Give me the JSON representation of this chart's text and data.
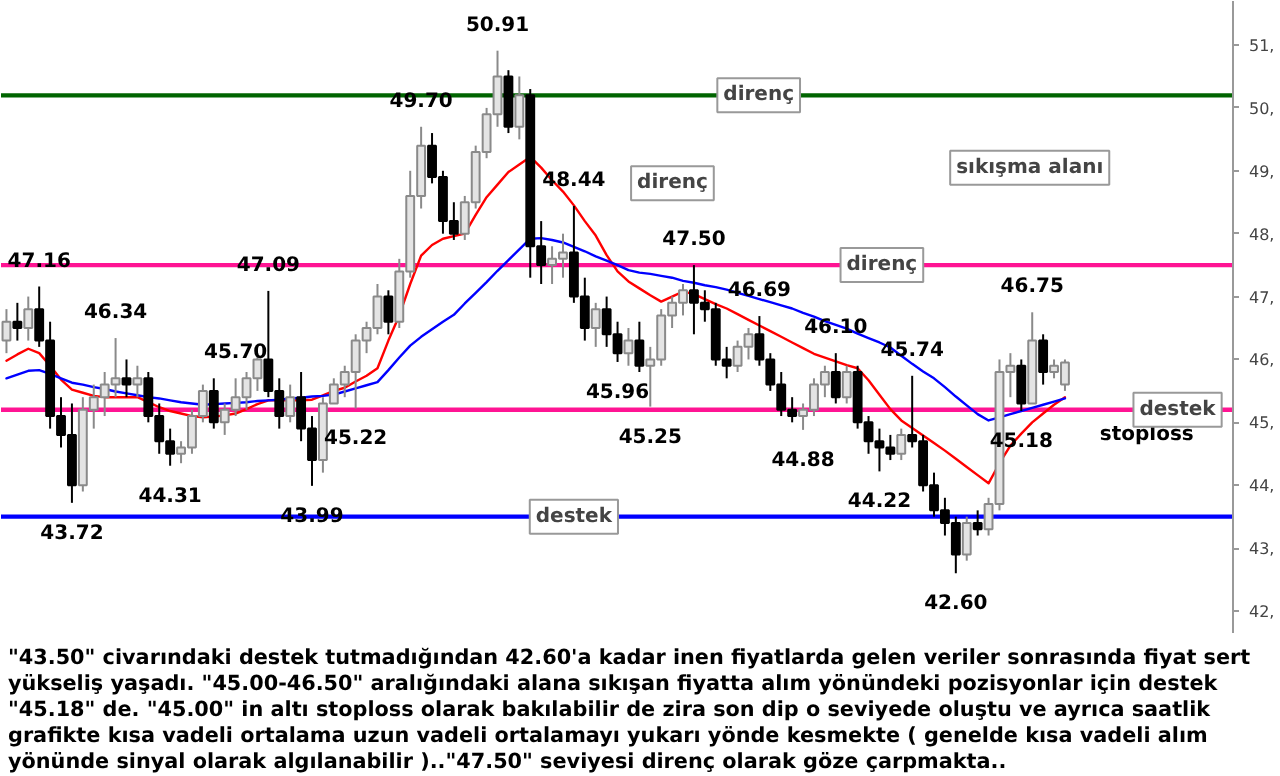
{
  "chart_data": {
    "type": "candlestick",
    "categories": [
      null,
      null,
      null,
      null,
      null,
      null,
      null,
      null,
      null,
      null,
      null,
      null,
      null,
      null,
      null,
      null,
      null,
      null,
      null,
      null,
      null,
      null,
      null,
      null,
      null,
      null,
      null,
      null,
      null,
      null,
      null,
      null,
      null,
      null,
      null,
      null,
      null,
      null,
      null,
      null,
      null,
      null,
      null,
      null,
      null,
      null,
      null,
      null,
      null,
      null,
      null,
      null,
      null,
      null,
      null,
      null,
      null,
      null,
      null,
      null,
      null,
      null,
      null,
      null,
      null,
      null,
      null,
      null,
      null,
      null,
      null,
      null,
      null,
      null,
      null,
      null,
      null,
      null,
      null,
      null,
      null,
      null,
      null,
      null,
      null,
      null,
      null,
      null,
      null,
      null,
      null,
      null,
      null,
      null,
      null,
      null,
      null,
      null
    ],
    "ohlc": [
      [
        46.3,
        46.8,
        46.1,
        46.6
      ],
      [
        46.6,
        46.9,
        46.3,
        46.5
      ],
      [
        46.5,
        47.0,
        46.3,
        46.8
      ],
      [
        46.8,
        47.16,
        46.2,
        46.3
      ],
      [
        46.3,
        46.6,
        44.9,
        45.1
      ],
      [
        45.1,
        45.4,
        44.6,
        44.8
      ],
      [
        44.8,
        45.3,
        43.72,
        44.0
      ],
      [
        44.0,
        45.4,
        43.9,
        45.2
      ],
      [
        45.2,
        45.6,
        44.9,
        45.4
      ],
      [
        45.4,
        45.8,
        45.1,
        45.6
      ],
      [
        45.6,
        46.34,
        45.4,
        45.7
      ],
      [
        45.7,
        46.0,
        45.4,
        45.6
      ],
      [
        45.6,
        45.9,
        45.4,
        45.7
      ],
      [
        45.7,
        45.8,
        45.0,
        45.1
      ],
      [
        45.1,
        45.3,
        44.5,
        44.7
      ],
      [
        44.7,
        44.9,
        44.31,
        44.5
      ],
      [
        44.5,
        44.7,
        44.35,
        44.6
      ],
      [
        44.6,
        45.2,
        44.5,
        45.1
      ],
      [
        45.1,
        45.6,
        45.0,
        45.5
      ],
      [
        45.5,
        45.7,
        44.9,
        45.0
      ],
      [
        45.0,
        45.3,
        44.8,
        45.2
      ],
      [
        45.2,
        45.7,
        45.1,
        45.4
      ],
      [
        45.4,
        45.8,
        45.2,
        45.7
      ],
      [
        45.7,
        46.1,
        45.5,
        46.0
      ],
      [
        46.0,
        47.09,
        45.4,
        45.5
      ],
      [
        45.5,
        45.7,
        44.9,
        45.1
      ],
      [
        45.1,
        45.6,
        45.0,
        45.4
      ],
      [
        45.4,
        45.8,
        44.7,
        44.9
      ],
      [
        44.9,
        45.1,
        43.99,
        44.4
      ],
      [
        44.4,
        45.4,
        44.2,
        45.3
      ],
      [
        45.3,
        45.7,
        45.3,
        45.6
      ],
      [
        45.6,
        45.9,
        45.4,
        45.8
      ],
      [
        45.8,
        46.4,
        45.22,
        46.3
      ],
      [
        46.3,
        46.6,
        46.1,
        46.5
      ],
      [
        46.5,
        47.2,
        46.4,
        47.0
      ],
      [
        47.0,
        47.1,
        46.4,
        46.6
      ],
      [
        46.6,
        47.6,
        46.5,
        47.4
      ],
      [
        47.4,
        49.0,
        47.3,
        48.6
      ],
      [
        48.6,
        49.7,
        48.4,
        49.4
      ],
      [
        49.4,
        49.6,
        48.8,
        48.9
      ],
      [
        48.9,
        49.0,
        48.0,
        48.2
      ],
      [
        48.2,
        48.5,
        47.9,
        48.0
      ],
      [
        48.0,
        48.6,
        47.9,
        48.5
      ],
      [
        48.5,
        49.4,
        48.4,
        49.3
      ],
      [
        49.3,
        50.0,
        49.2,
        49.9
      ],
      [
        49.9,
        50.91,
        49.7,
        50.5
      ],
      [
        50.5,
        50.6,
        49.6,
        49.7
      ],
      [
        49.7,
        50.5,
        49.5,
        50.2
      ],
      [
        50.2,
        50.3,
        47.3,
        47.8
      ],
      [
        47.8,
        48.2,
        47.2,
        47.5
      ],
      [
        47.5,
        47.8,
        47.2,
        47.6
      ],
      [
        47.6,
        48.0,
        47.3,
        47.7
      ],
      [
        47.7,
        48.44,
        46.9,
        47.0
      ],
      [
        47.0,
        47.3,
        46.3,
        46.5
      ],
      [
        46.5,
        46.9,
        46.2,
        46.8
      ],
      [
        46.8,
        47.0,
        46.2,
        46.4
      ],
      [
        46.4,
        46.6,
        45.96,
        46.1
      ],
      [
        46.1,
        46.5,
        45.9,
        46.3
      ],
      [
        46.3,
        46.6,
        45.8,
        45.9
      ],
      [
        45.9,
        46.2,
        45.25,
        46.0
      ],
      [
        46.0,
        46.8,
        45.9,
        46.7
      ],
      [
        46.7,
        47.0,
        46.5,
        46.9
      ],
      [
        46.9,
        47.2,
        46.7,
        47.1
      ],
      [
        47.1,
        47.5,
        46.4,
        46.9
      ],
      [
        46.9,
        47.1,
        46.6,
        46.8
      ],
      [
        46.8,
        46.9,
        45.9,
        46.0
      ],
      [
        46.0,
        46.2,
        45.7,
        45.9
      ],
      [
        45.9,
        46.3,
        45.8,
        46.2
      ],
      [
        46.2,
        46.5,
        46.0,
        46.4
      ],
      [
        46.4,
        46.69,
        45.9,
        46.0
      ],
      [
        46.0,
        46.1,
        45.5,
        45.6
      ],
      [
        45.6,
        45.8,
        45.1,
        45.2
      ],
      [
        45.2,
        45.4,
        45.0,
        45.1
      ],
      [
        45.1,
        45.3,
        44.88,
        45.2
      ],
      [
        45.2,
        45.7,
        45.1,
        45.6
      ],
      [
        45.6,
        45.9,
        45.4,
        45.8
      ],
      [
        45.8,
        46.1,
        45.3,
        45.4
      ],
      [
        45.4,
        45.9,
        45.3,
        45.8
      ],
      [
        45.8,
        45.9,
        44.9,
        45.0
      ],
      [
        45.0,
        45.1,
        44.5,
        44.7
      ],
      [
        44.7,
        44.9,
        44.22,
        44.6
      ],
      [
        44.6,
        44.8,
        44.4,
        44.5
      ],
      [
        44.5,
        44.9,
        44.4,
        44.8
      ],
      [
        44.8,
        45.74,
        44.6,
        44.7
      ],
      [
        44.7,
        44.8,
        43.9,
        44.0
      ],
      [
        44.0,
        44.2,
        43.5,
        43.6
      ],
      [
        43.6,
        43.8,
        43.2,
        43.4
      ],
      [
        43.4,
        43.5,
        42.6,
        42.9
      ],
      [
        42.9,
        43.5,
        42.8,
        43.4
      ],
      [
        43.4,
        43.6,
        43.2,
        43.3
      ],
      [
        43.3,
        43.8,
        43.2,
        43.7
      ],
      [
        43.7,
        46.0,
        43.6,
        45.8
      ],
      [
        45.8,
        46.1,
        45.4,
        45.9
      ],
      [
        45.9,
        46.0,
        45.18,
        45.3
      ],
      [
        45.3,
        46.75,
        45.3,
        46.3
      ],
      [
        46.3,
        46.4,
        45.6,
        45.8
      ],
      [
        45.8,
        46.0,
        45.7,
        45.9
      ],
      [
        45.6,
        46.0,
        45.5,
        45.95
      ]
    ],
    "value_labels": [
      null,
      null,
      null,
      "47.16",
      null,
      null,
      "43.72",
      null,
      null,
      null,
      "46.34",
      null,
      null,
      null,
      null,
      "44.31",
      null,
      null,
      null,
      null,
      null,
      "45.70",
      null,
      null,
      "47.09",
      null,
      null,
      null,
      "43.99",
      null,
      null,
      null,
      "45.22",
      null,
      null,
      null,
      null,
      null,
      "49.70",
      null,
      null,
      null,
      null,
      null,
      null,
      "50.91",
      null,
      null,
      null,
      null,
      null,
      null,
      "48.44",
      null,
      null,
      null,
      "45.96",
      null,
      null,
      "45.25",
      null,
      null,
      null,
      "47.50",
      null,
      null,
      null,
      null,
      null,
      "46.69",
      null,
      null,
      null,
      "44.88",
      null,
      null,
      "46.10",
      null,
      null,
      null,
      "44.22",
      null,
      null,
      "45.74",
      null,
      null,
      null,
      "42.60",
      null,
      null,
      null,
      null,
      null,
      "45.18",
      "46.75",
      null,
      null,
      null
    ],
    "series": [
      {
        "type": "line",
        "color": "#ff0000",
        "values": [
          45.98,
          46.08,
          46.17,
          46.1,
          45.9,
          45.68,
          45.52,
          45.47,
          45.42,
          45.4,
          45.4,
          45.4,
          45.4,
          45.32,
          45.24,
          45.18,
          45.14,
          45.1,
          45.08,
          45.09,
          45.11,
          45.14,
          45.21,
          45.29,
          45.35,
          45.35,
          45.35,
          45.35,
          45.36,
          45.43,
          45.5,
          45.55,
          45.65,
          45.74,
          45.86,
          46.3,
          46.7,
          47.2,
          47.65,
          47.82,
          47.92,
          47.96,
          48.0,
          48.3,
          48.58,
          48.78,
          48.98,
          49.1,
          49.22,
          49.05,
          48.85,
          48.67,
          48.45,
          48.2,
          47.97,
          47.66,
          47.4,
          47.24,
          47.13,
          47.02,
          46.92,
          47.0,
          47.08,
          47.04,
          46.96,
          46.88,
          46.81,
          46.72,
          46.63,
          46.54,
          46.45,
          46.36,
          46.27,
          46.18,
          46.09,
          46.03,
          45.97,
          45.91,
          45.86,
          45.67,
          45.44,
          45.21,
          45.03,
          44.91,
          44.79,
          44.67,
          44.55,
          44.42,
          44.29,
          44.16,
          44.03,
          44.35,
          44.63,
          44.82,
          45.0,
          45.14,
          45.28,
          45.4
        ]
      },
      {
        "type": "line",
        "color": "#0000ff",
        "values": [
          45.7,
          45.76,
          45.82,
          45.83,
          45.77,
          45.7,
          45.63,
          45.6,
          45.56,
          45.53,
          45.49,
          45.46,
          45.43,
          45.4,
          45.38,
          45.35,
          45.32,
          45.3,
          45.28,
          45.29,
          45.3,
          45.31,
          45.32,
          45.34,
          45.35,
          45.36,
          45.38,
          45.39,
          45.41,
          45.42,
          45.44,
          45.49,
          45.54,
          45.59,
          45.64,
          45.83,
          46.03,
          46.22,
          46.36,
          46.48,
          46.6,
          46.71,
          46.89,
          47.06,
          47.23,
          47.41,
          47.58,
          47.75,
          47.92,
          47.93,
          47.9,
          47.86,
          47.79,
          47.72,
          47.64,
          47.57,
          47.5,
          47.42,
          47.38,
          47.36,
          47.33,
          47.3,
          47.25,
          47.22,
          47.18,
          47.15,
          47.11,
          47.06,
          47.01,
          46.96,
          46.91,
          46.86,
          46.81,
          46.74,
          46.68,
          46.61,
          46.55,
          46.49,
          46.41,
          46.34,
          46.27,
          46.19,
          46.06,
          45.93,
          45.81,
          45.7,
          45.56,
          45.41,
          45.27,
          45.13,
          45.03,
          45.08,
          45.13,
          45.18,
          45.23,
          45.28,
          45.33,
          45.38
        ]
      }
    ],
    "ref_lines": [
      {
        "axis": "y",
        "value": 50.2,
        "label": "direnç",
        "color": "#006400"
      },
      {
        "axis": "y",
        "value": 47.5,
        "label": "direnç",
        "color": "#ff1493"
      },
      {
        "axis": "y",
        "value": 43.5,
        "label": "destek",
        "color": "#0000ff"
      },
      {
        "axis": "y",
        "value": 45.2,
        "label": "destek",
        "color": "#ff1493"
      }
    ],
    "ylim": [
      41.65,
      51.7
    ],
    "yticks": [
      {
        "value": 42,
        "label": "42,"
      },
      {
        "value": 43,
        "label": "43,"
      },
      {
        "value": 44,
        "label": "44,"
      },
      {
        "value": 45,
        "label": "45,"
      },
      {
        "value": 46,
        "label": "46,"
      },
      {
        "value": 47,
        "label": "47,"
      },
      {
        "value": 48,
        "label": "48,"
      },
      {
        "value": 49,
        "label": "49,"
      },
      {
        "value": 50,
        "label": "50,"
      },
      {
        "value": 51,
        "label": "51,"
      }
    ],
    "tick_labels": "y",
    "annotations": [
      {
        "text": "direnç",
        "y": 48.8
      },
      "sıkışma alanı",
      "stoploss",
      "\"43.50\" civarındaki destek tutmadığından 42.60'a kadar inen fiyatlarda gelen veriler sonrasında fiyat sert yükseliş yaşadı. \"45.00-46.50\" aralığındaki alana sıkışan fiyatta alım yönündeki pozisyonlar için destek \"45.18\" de. \"45.00\" in altı stoploss olarak bakılabilir de zira son dip o seviyede oluştu ve ayrıca saatlik grafikte kısa vadeli ortalama uzun vadeli ortalamayı yukarı yönde kesmekte ( genelde kısa vadeli alım yönünde sinyal olarak algılanabilir )..\"47.50\" seviyesi direnç olarak göze çarpmakta.."
    ]
  }
}
